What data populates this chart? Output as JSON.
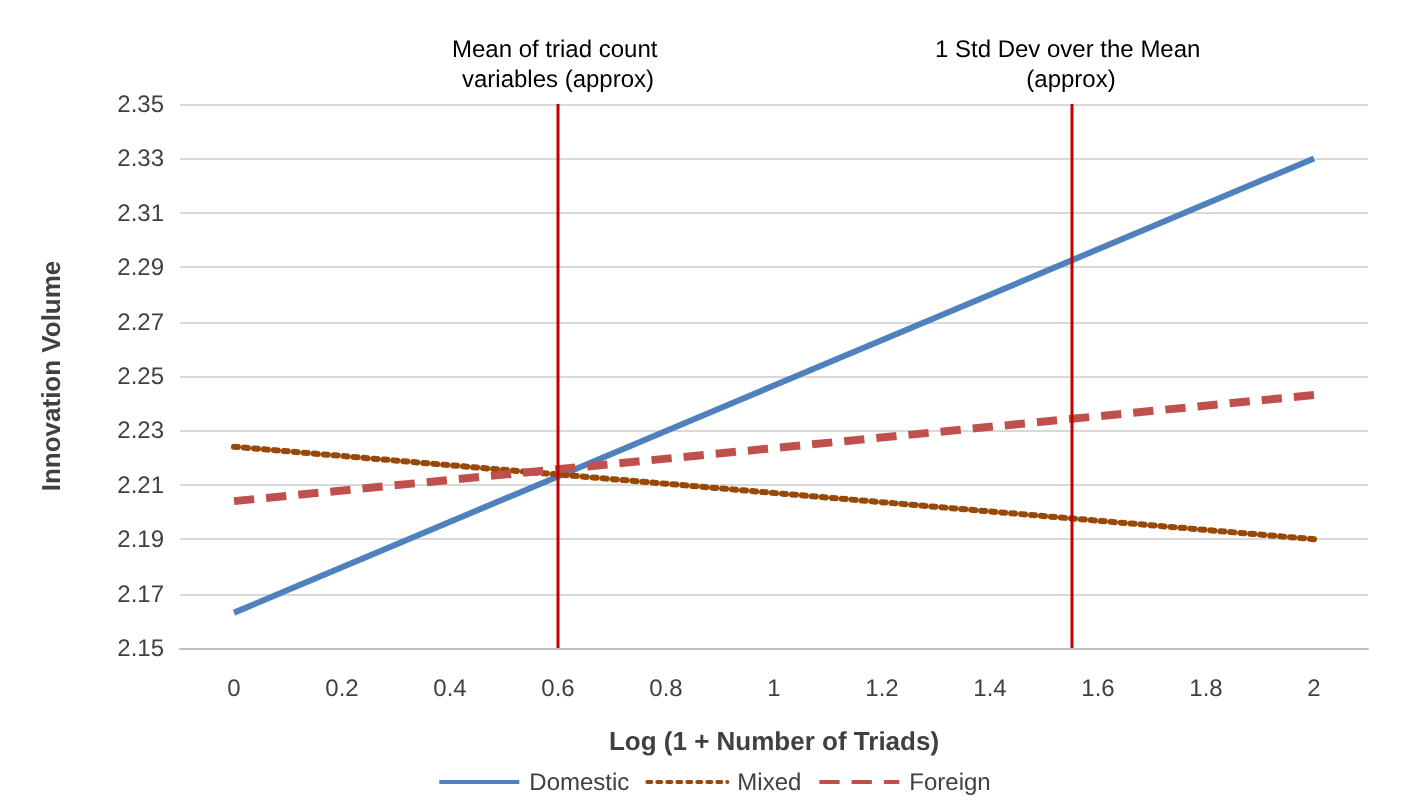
{
  "chart_data": {
    "type": "line",
    "xlabel": "Log (1 + Number of Triads)",
    "ylabel": "Innovation Volume",
    "x": [
      0,
      2
    ],
    "series": [
      {
        "name": "Domestic",
        "color": "#4f81bd",
        "values": [
          2.163,
          2.33
        ],
        "line_style": "solid"
      },
      {
        "name": "Mixed",
        "color": "#984807",
        "values": [
          2.224,
          2.19
        ],
        "line_style": "dotted"
      },
      {
        "name": "Foreign",
        "color": "#c0504d",
        "values": [
          2.204,
          2.243
        ],
        "line_style": "dashed"
      }
    ],
    "xlim": [
      -0.1,
      2.1
    ],
    "xticks": [
      0,
      0.2,
      0.4,
      0.6,
      0.8,
      1,
      1.2,
      1.4,
      1.6,
      1.8,
      2
    ],
    "ylim": [
      2.15,
      2.35
    ],
    "yticks": [
      2.15,
      2.17,
      2.19,
      2.21,
      2.23,
      2.25,
      2.27,
      2.29,
      2.31,
      2.33,
      2.35
    ],
    "ref_lines": [
      {
        "axis": "x",
        "value": 0.6,
        "label": "Mean of triad count variables (approx)",
        "color": "#c00000"
      },
      {
        "axis": "x",
        "value": 1.55,
        "label": "1 Std Dev over the Mean (approx)",
        "color": "#c00000"
      }
    ],
    "grid": "y",
    "legend": "bottom",
    "marker": "none"
  }
}
